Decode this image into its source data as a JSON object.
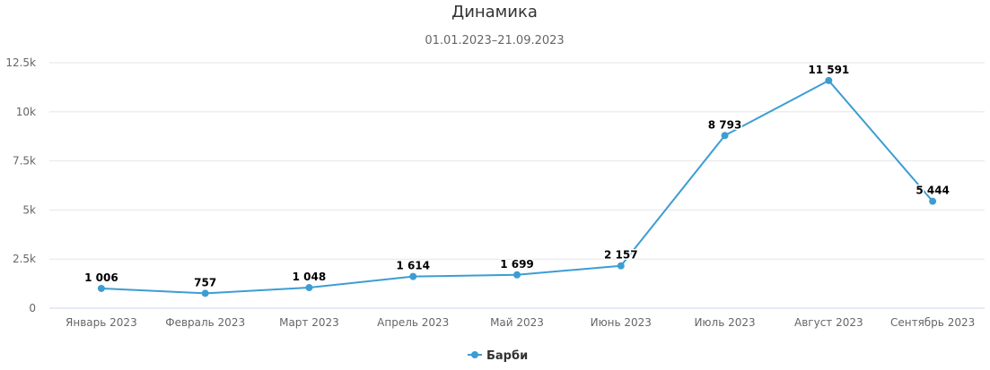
{
  "chart_data": {
    "type": "line",
    "title": "Динамика",
    "subtitle": "01.01.2023–21.09.2023",
    "categories": [
      "Январь 2023",
      "Февраль 2023",
      "Март 2023",
      "Апрель 2023",
      "Май 2023",
      "Июнь 2023",
      "Июль 2023",
      "Август 2023",
      "Сентябрь 2023"
    ],
    "series": [
      {
        "name": "Барби",
        "color": "#3d9dd3",
        "values": [
          1006,
          757,
          1048,
          1614,
          1699,
          2157,
          8793,
          11591,
          5444
        ],
        "labels": [
          "1 006",
          "757",
          "1 048",
          "1 614",
          "1 699",
          "2 157",
          "8 793",
          "11 591",
          "5 444"
        ]
      }
    ],
    "ylim": [
      0,
      12500
    ],
    "yticks": [
      0,
      2500,
      5000,
      7500,
      10000,
      12500
    ],
    "ytick_labels": [
      "0",
      "2.5k",
      "5k",
      "7.5k",
      "10k",
      "12.5k"
    ],
    "grid": true,
    "legend_position": "bottom-center",
    "xlabel": "",
    "ylabel": ""
  }
}
